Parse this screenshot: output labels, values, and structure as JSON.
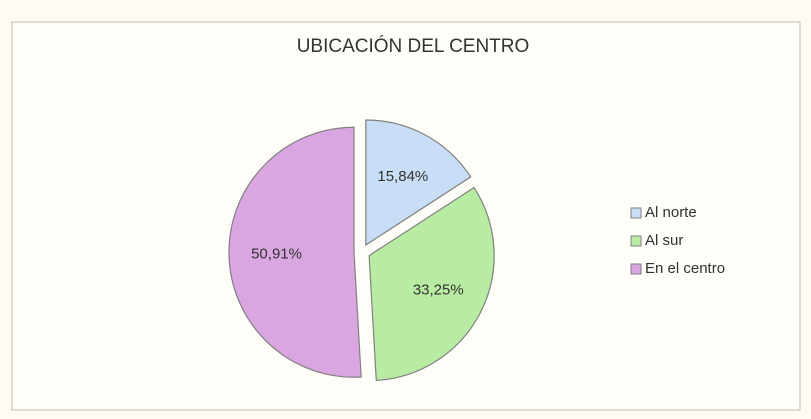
{
  "chart_data": {
    "type": "pie",
    "title": "UBICACIÓN DEL CENTRO",
    "categories": [
      "Al norte",
      "Al sur",
      "En el centro"
    ],
    "values": [
      15.84,
      33.25,
      50.91
    ],
    "value_labels": [
      "15,84%",
      "33,25%",
      "50,91%"
    ],
    "colors": [
      "#c8def6",
      "#b9eca3",
      "#d9a6e2"
    ],
    "legend": "right"
  }
}
